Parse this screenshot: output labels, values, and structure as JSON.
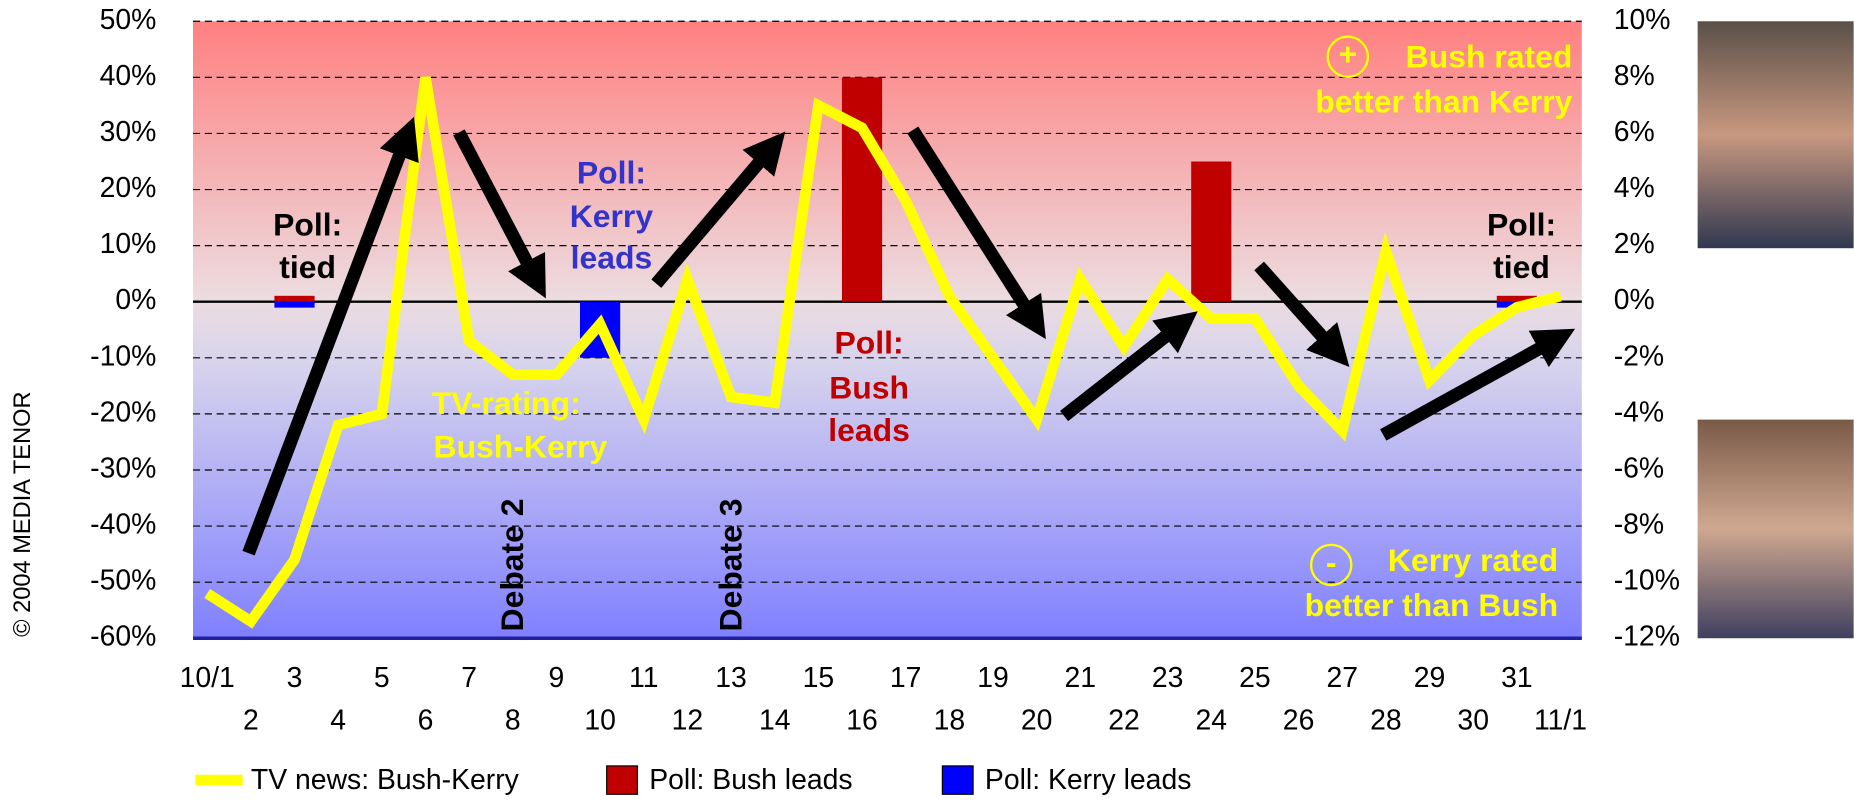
{
  "chart_data": {
    "type": "line",
    "categories": [
      "10/1",
      "2",
      "3",
      "4",
      "5",
      "6",
      "7",
      "8",
      "9",
      "10",
      "11",
      "12",
      "13",
      "14",
      "15",
      "16",
      "17",
      "18",
      "19",
      "20",
      "21",
      "22",
      "23",
      "24",
      "25",
      "26",
      "27",
      "28",
      "29",
      "30",
      "31",
      "11/1"
    ],
    "series": [
      {
        "name": "TV news: Bush-Kerry",
        "type": "line",
        "color": "#ffff00",
        "values": [
          -52,
          -57,
          -46,
          -22,
          -20,
          40,
          -7,
          -13,
          -13,
          -4,
          -21,
          4,
          -17,
          -18,
          35,
          31,
          18,
          1,
          -10,
          -21,
          4,
          -8,
          4,
          -3,
          -3,
          -15,
          -23,
          9,
          -14,
          -6,
          -1,
          1
        ]
      },
      {
        "name": "Poll: Bush leads",
        "type": "bar",
        "axis": "y2",
        "color": "#c00000",
        "values": [
          null,
          null,
          0,
          null,
          null,
          null,
          null,
          null,
          null,
          null,
          null,
          null,
          null,
          null,
          null,
          8,
          null,
          null,
          null,
          null,
          null,
          null,
          null,
          5,
          null,
          null,
          null,
          null,
          null,
          null,
          0,
          null
        ]
      },
      {
        "name": "Poll: Kerry leads",
        "type": "bar",
        "axis": "y2",
        "color": "#0000ff",
        "values": [
          null,
          null,
          0,
          null,
          null,
          null,
          null,
          null,
          null,
          -2,
          null,
          null,
          null,
          null,
          null,
          null,
          null,
          null,
          null,
          null,
          null,
          null,
          null,
          null,
          null,
          null,
          null,
          null,
          null,
          null,
          0,
          null
        ]
      }
    ],
    "ylim": [
      -60,
      50
    ],
    "yticks": [
      {
        "value": -60,
        "label": "-60%"
      },
      {
        "value": -50,
        "label": "-50%"
      },
      {
        "value": -40,
        "label": "-40%"
      },
      {
        "value": -30,
        "label": "-30%"
      },
      {
        "value": -20,
        "label": "-20%"
      },
      {
        "value": -10,
        "label": "-10%"
      },
      {
        "value": 0,
        "label": "0%"
      },
      {
        "value": 10,
        "label": "10%"
      },
      {
        "value": 20,
        "label": "20%"
      },
      {
        "value": 30,
        "label": "30%"
      },
      {
        "value": 40,
        "label": "40%"
      },
      {
        "value": 50,
        "label": "50%"
      }
    ],
    "y2lim": [
      -12,
      10
    ],
    "y2ticks": [
      {
        "value": -12,
        "label": "-12%"
      },
      {
        "value": -10,
        "label": "-10%"
      },
      {
        "value": -8,
        "label": "-8%"
      },
      {
        "value": -6,
        "label": "-6%"
      },
      {
        "value": -4,
        "label": "-4%"
      },
      {
        "value": -2,
        "label": "-2%"
      },
      {
        "value": 0,
        "label": "0%"
      },
      {
        "value": 2,
        "label": "2%"
      },
      {
        "value": 4,
        "label": "4%"
      },
      {
        "value": 6,
        "label": "6%"
      },
      {
        "value": 8,
        "label": "8%"
      },
      {
        "value": 10,
        "label": "10%"
      }
    ],
    "grid": true,
    "annotations": {
      "poll_tied_left": [
        "Poll:",
        "tied"
      ],
      "poll_kerry": [
        "Poll:",
        "Kerry",
        "leads"
      ],
      "poll_bush": [
        "Poll:",
        "Bush",
        "leads"
      ],
      "poll_tied_right": [
        "Poll:",
        "tied"
      ],
      "tv_rating": [
        "TV-rating:",
        "Bush-Kerry"
      ],
      "debate2": "Debate 2",
      "debate3": "Debate 3",
      "bush_better": [
        "+",
        "Bush rated",
        "better than Kerry"
      ],
      "kerry_better": [
        "-",
        "Kerry rated",
        "better than Bush"
      ],
      "copyright": "© 2004 MEDIA TENOR"
    }
  }
}
